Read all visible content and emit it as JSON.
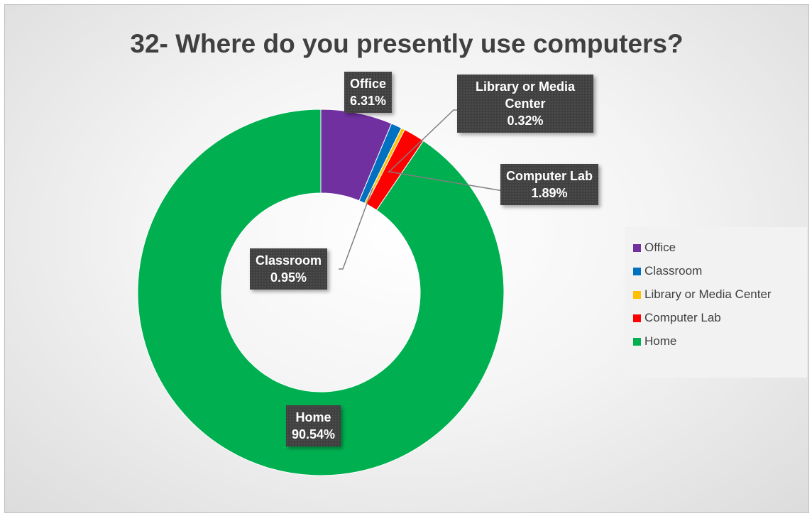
{
  "chart_data": {
    "type": "pie",
    "variant": "donut",
    "title": "32- Where do you presently use computers?",
    "legend_position": "right",
    "slices": [
      {
        "name": "Office",
        "value": 6.31,
        "label": "6.31%",
        "color": "#7030a0"
      },
      {
        "name": "Classroom",
        "value": 0.95,
        "label": "0.95%",
        "color": "#0070c0"
      },
      {
        "name": "Library or Media Center",
        "value": 0.32,
        "label": "0.32%",
        "color": "#ffc000"
      },
      {
        "name": "Computer Lab",
        "value": 1.89,
        "label": "1.89%",
        "color": "#ff0000"
      },
      {
        "name": "Home",
        "value": 90.54,
        "label": "90.54%",
        "color": "#00b050"
      }
    ]
  }
}
